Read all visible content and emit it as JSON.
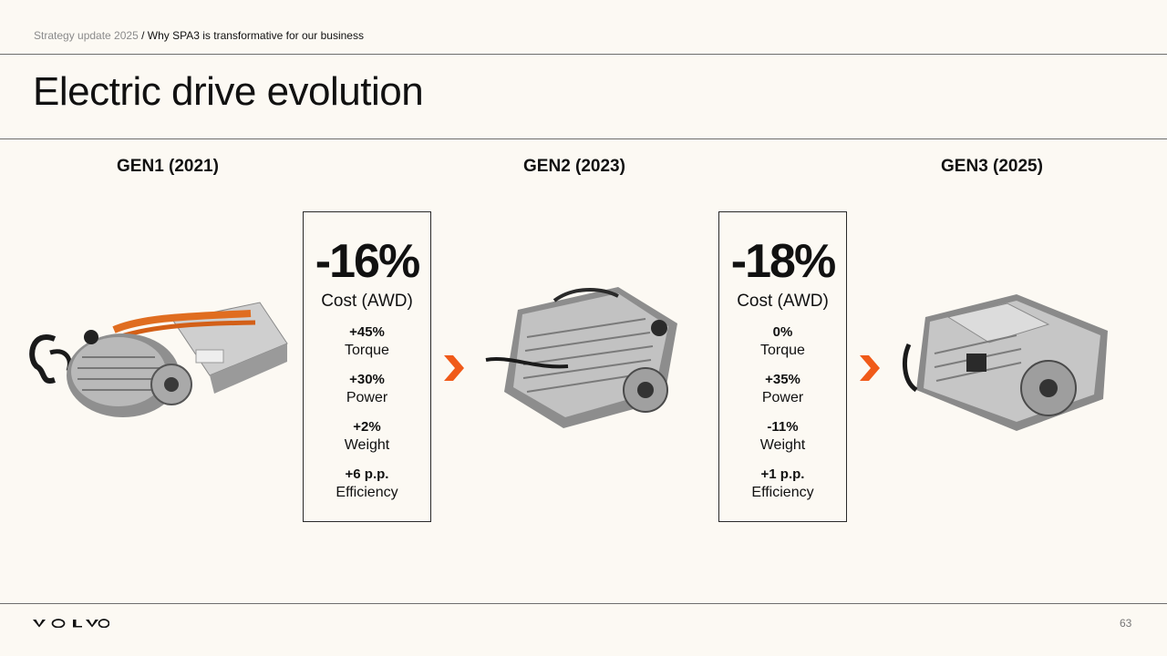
{
  "header": {
    "breadcrumb_section": "Strategy update 2025",
    "breadcrumb_separator": " / ",
    "breadcrumb_page": "Why SPA3 is transformative for our business",
    "title": "Electric drive evolution"
  },
  "generations": [
    {
      "label": "GEN1 (2021)"
    },
    {
      "label": "GEN2 (2023)"
    },
    {
      "label": "GEN3 (2025)"
    }
  ],
  "comparisons": [
    {
      "headline": "-16%",
      "headline_label": "Cost (AWD)",
      "metrics": [
        {
          "value": "+45%",
          "label": "Torque"
        },
        {
          "value": "+30%",
          "label": "Power"
        },
        {
          "value": "+2%",
          "label": "Weight"
        },
        {
          "value": "+6 p.p.",
          "label": "Efficiency"
        }
      ]
    },
    {
      "headline": "-18%",
      "headline_label": "Cost (AWD)",
      "metrics": [
        {
          "value": "0%",
          "label": "Torque"
        },
        {
          "value": "+35%",
          "label": "Power"
        },
        {
          "value": "-11%",
          "label": "Weight"
        },
        {
          "value": "+1 p.p.",
          "label": "Efficiency"
        }
      ]
    }
  ],
  "colors": {
    "accent": "#f05a19",
    "background": "#fcf9f3",
    "rule": "#6e6e6e"
  },
  "icons": {
    "arrow": "chevron-right-icon",
    "brand": "volvo-wordmark"
  },
  "footer": {
    "logo_text": "VOLVO",
    "page_number": "63"
  }
}
